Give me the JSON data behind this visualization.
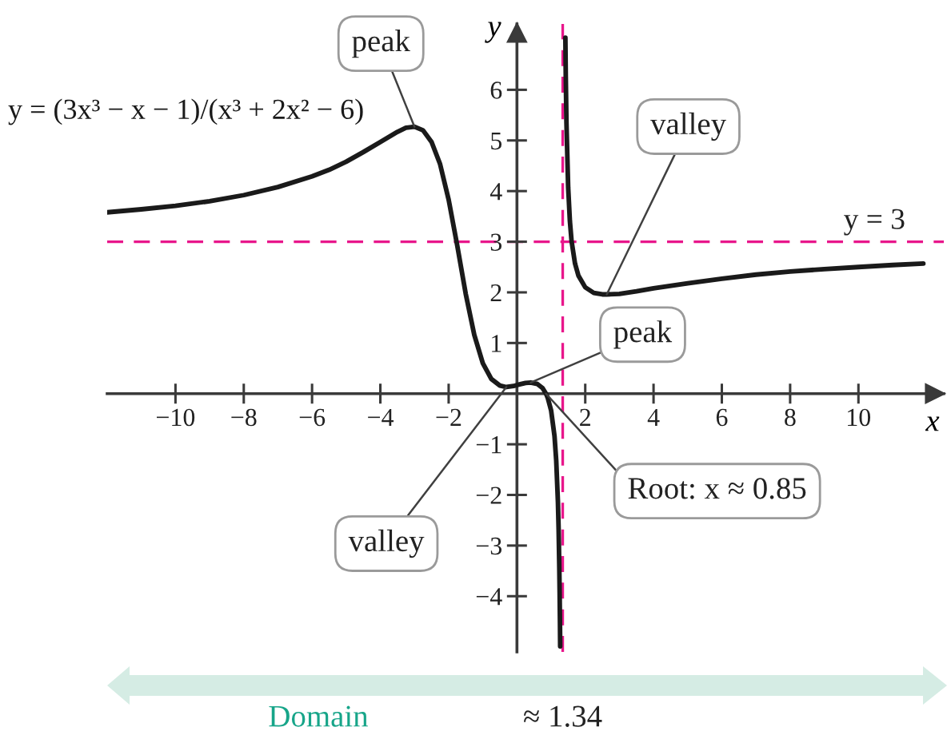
{
  "chart_data": {
    "type": "line",
    "xlabel": "x",
    "ylabel": "y",
    "x": [
      -12,
      -11,
      -10,
      -9,
      -8,
      -7,
      -6,
      -5.5,
      -5,
      -4.5,
      -4,
      -3.5,
      -3.25,
      -3,
      -2.75,
      -2.5,
      -2.25,
      -2,
      -1.75,
      -1.5,
      -1.25,
      -1,
      -0.75,
      -0.5,
      -0.31,
      -0.1,
      0,
      0.25,
      0.4,
      0.6,
      0.75,
      0.85,
      0.9,
      1,
      1.1,
      1.15,
      1.2,
      1.22,
      1.24,
      1.25,
      1.26,
      1.266,
      1.34,
      1.418,
      1.43,
      1.45,
      1.5,
      1.55,
      1.6,
      1.7,
      1.8,
      2,
      2.25,
      2.5,
      2.63,
      3,
      3.5,
      4,
      5,
      6,
      7,
      8,
      9,
      10,
      11,
      11.9
    ],
    "series": [
      {
        "name": "y = (3x³ − x − 1)/(x³ + 2x² − 6)",
        "color": "#1a1a1a",
        "values": [
          3.58,
          3.64,
          3.71,
          3.8,
          3.92,
          4.08,
          4.29,
          4.42,
          4.58,
          4.77,
          4.97,
          5.17,
          5.25,
          5.27,
          5.2,
          4.97,
          4.53,
          3.83,
          2.93,
          1.97,
          1.16,
          0.6,
          0.29,
          0.16,
          0.13,
          0.15,
          0.17,
          0.21,
          0.22,
          0.19,
          0.11,
          0.0,
          -0.08,
          -0.33,
          -0.84,
          -1.32,
          -2.14,
          -2.67,
          -3.42,
          -3.92,
          -4.54,
          -4.99,
          null,
          7.03,
          6.26,
          5.34,
          4.07,
          3.41,
          3.01,
          2.57,
          2.33,
          2.1,
          1.99,
          1.96,
          1.96,
          1.97,
          2.02,
          2.08,
          2.18,
          2.27,
          2.35,
          2.41,
          2.46,
          2.5,
          2.54,
          2.57
        ]
      }
    ],
    "xlim": [
      -12,
      12.5
    ],
    "ylim": [
      -5.1,
      7.3
    ],
    "xticks": [
      -10,
      -8,
      -6,
      -4,
      -2,
      2,
      4,
      6,
      8,
      10
    ],
    "yticks": [
      -4,
      -3,
      -2,
      -1,
      1,
      2,
      3,
      4,
      5,
      6
    ],
    "ref_lines": [
      {
        "axis": "y",
        "value": 3,
        "label": "y = 3",
        "color": "#e8168b",
        "line_style": "dashed"
      },
      {
        "axis": "x",
        "value": 1.34,
        "label": "≈ 1.34",
        "color": "#e8168b",
        "line_style": "dashed"
      }
    ],
    "annotations": [
      {
        "text": "peak",
        "x": -3,
        "y": 5.27
      },
      {
        "text": "valley",
        "x": 2.63,
        "y": 1.96
      },
      {
        "text": "peak",
        "x": 0.4,
        "y": 0.22
      },
      {
        "text": "valley",
        "x": -0.31,
        "y": 0.13
      },
      {
        "text": "Root: x ≈ 0.85",
        "x": 0.85,
        "y": 0
      },
      "Domain"
    ],
    "line_style": "solid"
  }
}
